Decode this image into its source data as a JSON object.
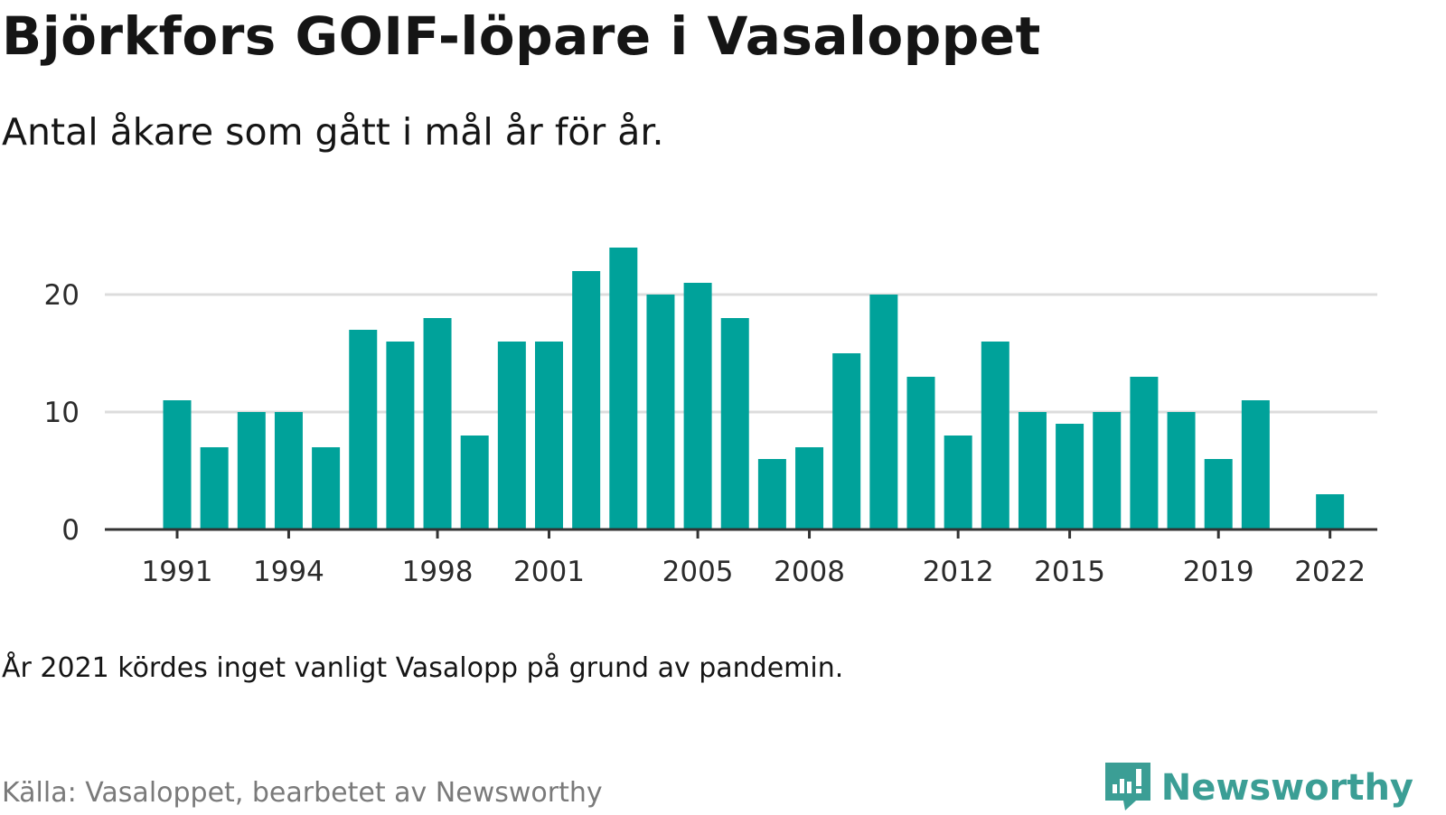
{
  "title": "Björkfors GOIF-löpare i Vasaloppet",
  "subtitle": "Antal åkare som gått i mål år för år.",
  "note": "År 2021 kördes inget vanligt Vasalopp på grund av pandemin.",
  "source": "Källa: Vasaloppet, bearbetet av Newsworthy",
  "brand": {
    "name": "Newsworthy",
    "icon": "newsworthy-logo-icon",
    "color": "#3b9e95"
  },
  "chart_data": {
    "type": "bar",
    "categories": [
      1991,
      1992,
      1993,
      1994,
      1995,
      1996,
      1997,
      1998,
      1999,
      2000,
      2001,
      2002,
      2003,
      2004,
      2005,
      2006,
      2007,
      2008,
      2009,
      2010,
      2011,
      2012,
      2013,
      2014,
      2015,
      2016,
      2017,
      2018,
      2019,
      2020,
      2021,
      2022
    ],
    "values": [
      11,
      7,
      10,
      10,
      7,
      17,
      16,
      18,
      8,
      16,
      16,
      22,
      24,
      20,
      21,
      18,
      6,
      7,
      15,
      20,
      13,
      8,
      16,
      10,
      9,
      10,
      13,
      10,
      6,
      11,
      null,
      3
    ],
    "x_tick_labels": [
      "1991",
      "1994",
      "1998",
      "2001",
      "2005",
      "2008",
      "2012",
      "2015",
      "2019",
      "2022"
    ],
    "y_ticks": [
      0,
      10,
      20
    ],
    "ylim": [
      0,
      25
    ],
    "bar_color": "#00a29a",
    "grid": true,
    "legend": "none"
  }
}
